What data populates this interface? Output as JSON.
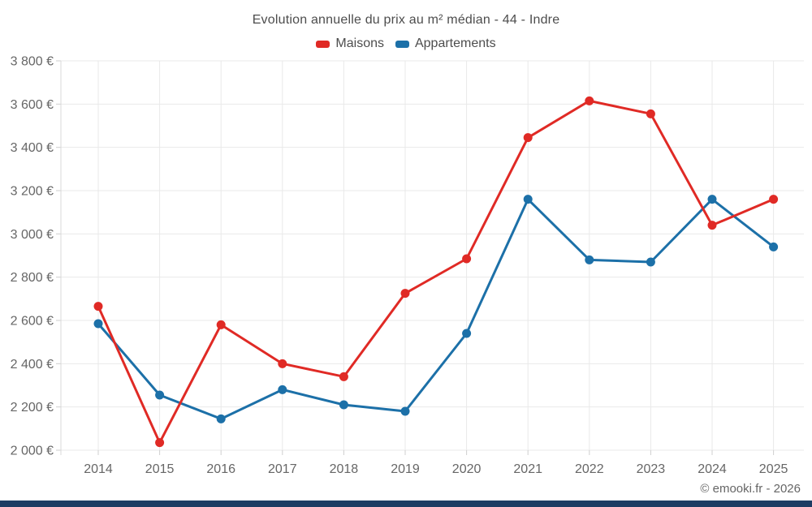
{
  "page": {
    "footer": "© emooki.fr - 2026",
    "colors": {
      "bottom_bar": "#1d3c63",
      "grid": "#e9e9e9",
      "axis_line": "#d9d9d9",
      "tick": "#cfcfcf",
      "axis_text": "#666666",
      "title_text": "#4d4d4d"
    }
  },
  "chart_data": {
    "type": "line",
    "title": "Evolution annuelle du prix au m² médian - 44 - Indre",
    "categories": [
      "2014",
      "2015",
      "2016",
      "2017",
      "2018",
      "2019",
      "2020",
      "2021",
      "2022",
      "2023",
      "2024",
      "2025"
    ],
    "series": [
      {
        "name": "Maisons",
        "color": "#e02a25",
        "values": [
          2665,
          2035,
          2580,
          2400,
          2340,
          2725,
          2885,
          3445,
          3615,
          3555,
          3040,
          3160
        ]
      },
      {
        "name": "Appartements",
        "color": "#1c70a8",
        "values": [
          2585,
          2255,
          2145,
          2280,
          2210,
          2180,
          2540,
          3160,
          2880,
          2870,
          3160,
          2940
        ]
      }
    ],
    "xlabel": "",
    "ylabel": "",
    "ylim": [
      2000,
      3800
    ],
    "ytick_step": 200,
    "yaxis_suffix": " €",
    "grid": true,
    "legend_position": "top"
  }
}
